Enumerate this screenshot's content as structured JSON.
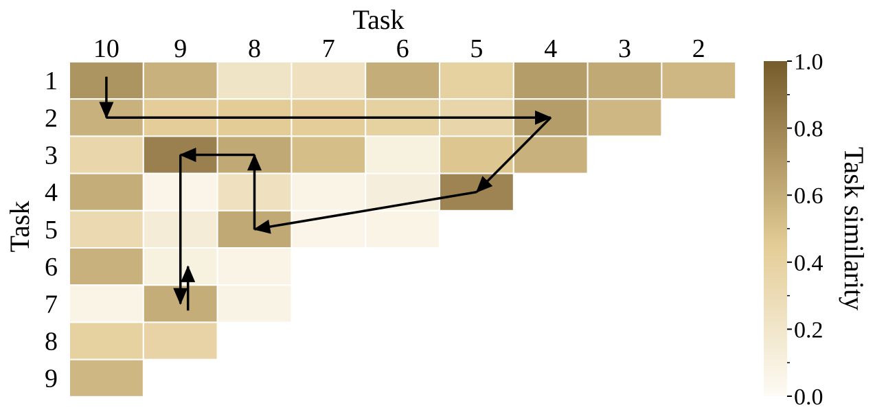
{
  "chart_data": {
    "type": "heatmap",
    "x_axis": {
      "label": "Task",
      "position": "top",
      "categories": [
        "10",
        "9",
        "8",
        "7",
        "6",
        "5",
        "4",
        "3",
        "2"
      ]
    },
    "y_axis": {
      "label": "Task",
      "position": "left",
      "categories": [
        "1",
        "2",
        "3",
        "4",
        "5",
        "6",
        "7",
        "8",
        "9"
      ]
    },
    "rows": [
      {
        "task": "1",
        "values": [
          0.72,
          0.58,
          0.22,
          0.25,
          0.6,
          0.4,
          0.68,
          0.62,
          0.55
        ]
      },
      {
        "task": "2",
        "values": [
          0.58,
          0.44,
          0.45,
          0.44,
          0.4,
          0.36,
          0.68,
          0.55,
          null
        ]
      },
      {
        "task": "3",
        "values": [
          0.35,
          0.82,
          0.62,
          0.52,
          0.1,
          0.48,
          0.58,
          null,
          null
        ]
      },
      {
        "task": "4",
        "values": [
          0.6,
          0.06,
          0.25,
          0.07,
          0.12,
          0.8,
          null,
          null,
          null
        ]
      },
      {
        "task": "5",
        "values": [
          0.32,
          0.14,
          0.62,
          0.06,
          0.07,
          null,
          null,
          null,
          null
        ]
      },
      {
        "task": "6",
        "values": [
          0.58,
          0.1,
          0.07,
          null,
          null,
          null,
          null,
          null,
          null
        ]
      },
      {
        "task": "7",
        "values": [
          0.07,
          0.6,
          0.08,
          null,
          null,
          null,
          null,
          null,
          null
        ]
      },
      {
        "task": "8",
        "values": [
          0.4,
          0.38,
          null,
          null,
          null,
          null,
          null,
          null,
          null
        ]
      },
      {
        "task": "9",
        "values": [
          0.55,
          null,
          null,
          null,
          null,
          null,
          null,
          null,
          null
        ]
      }
    ],
    "colorbar": {
      "label": "Task similarity",
      "range": [
        0.0,
        1.0
      ],
      "ticks": [
        "0.0",
        "0.2",
        "0.4",
        "0.6",
        "0.8",
        "1.0"
      ],
      "color_low": "#fdfbf5",
      "color_mid": "#e3cc96",
      "color_high": "#765b2b"
    },
    "path": [
      {
        "row": "1",
        "col": "10"
      },
      {
        "row": "2",
        "col": "10"
      },
      {
        "row": "2",
        "col": "4"
      },
      {
        "row": "4",
        "col": "5"
      },
      {
        "row": "5",
        "col": "8"
      },
      {
        "row": "3",
        "col": "8"
      },
      {
        "row": "3",
        "col": "9"
      },
      {
        "row": "7",
        "col": "9"
      },
      {
        "row": "6",
        "col": "9"
      }
    ]
  }
}
